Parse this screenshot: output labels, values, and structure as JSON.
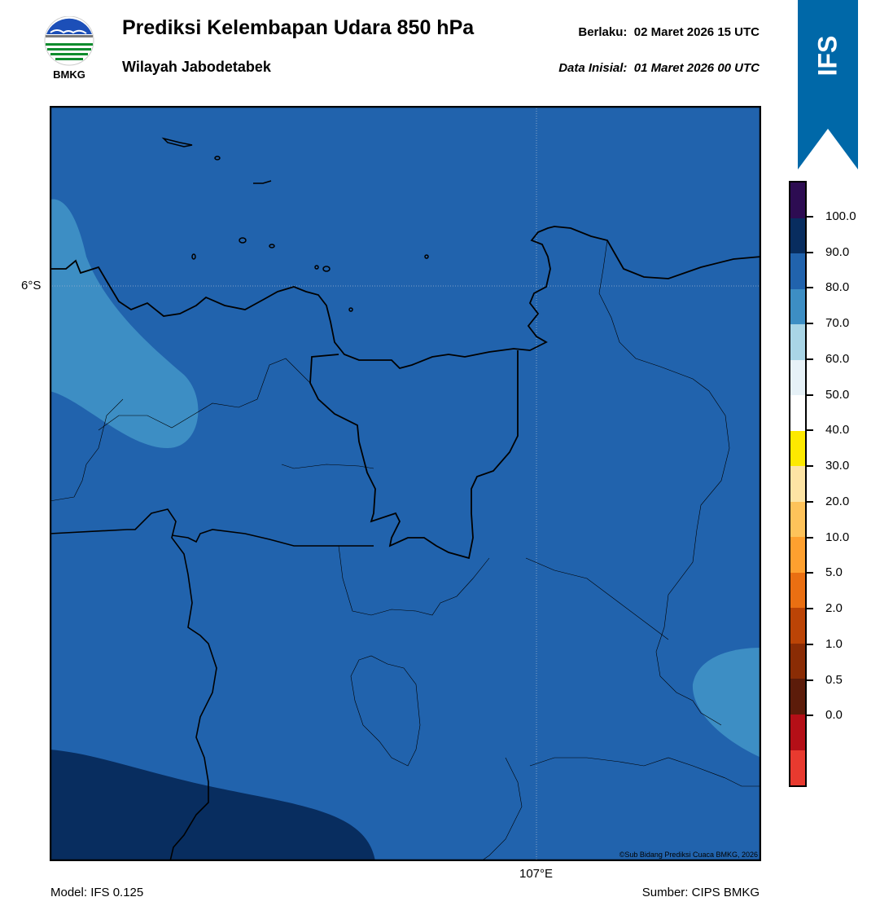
{
  "header": {
    "logo_text": "BMKG",
    "title": "Prediksi Kelembapan Udara 850 hPa",
    "subtitle": "Wilayah Jabodetabek",
    "valid_label": "Berlaku:",
    "valid_time": "02 Maret 2026 15 UTC",
    "init_label": "Data Inisial:",
    "init_time": "01 Maret 2026 00 UTC"
  },
  "ribbon": {
    "label": "IFS",
    "color": "#0068a8"
  },
  "map": {
    "lat_label": "6°S",
    "lon_label": "107°E",
    "copyright": "©Sub Bidang Prediksi Cuaca BMKG, 2026",
    "colors": {
      "level_80_90": "#2163ad",
      "level_70_80": "#3d8ec4",
      "level_90_100": "#082d5f"
    }
  },
  "footer": {
    "model": "Model: IFS 0.125",
    "source": "Sumber: CIPS BMKG"
  },
  "colorbar": {
    "labels": [
      "100.0",
      "90.0",
      "80.0",
      "70.0",
      "60.0",
      "50.0",
      "40.0",
      "30.0",
      "20.0",
      "10.0",
      "5.0",
      "2.0",
      "1.0",
      "0.5",
      "0.0"
    ],
    "colors": [
      "#2d0c52",
      "#082d5f",
      "#2163ad",
      "#3d8ec4",
      "#a9d5e6",
      "#e6f1f7",
      "#ffffff",
      "#fde900",
      "#fde4a4",
      "#fec35a",
      "#fea02f",
      "#ea6f12",
      "#bb4406",
      "#8a2c05",
      "#5c1c0a",
      "#b40f17",
      "#e83a2f"
    ]
  }
}
